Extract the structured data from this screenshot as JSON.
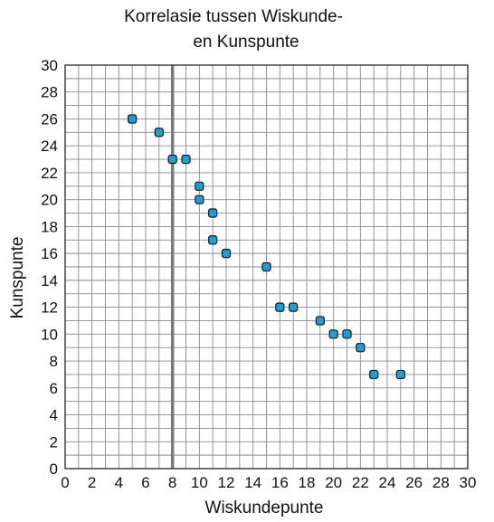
{
  "chart_data": {
    "type": "scatter",
    "title_lines": [
      "Korrelasie tussen Wiskunde-",
      "en Kunspunte"
    ],
    "xlabel": "Wiskundepunte",
    "ylabel": "Kunspunte",
    "xlim": [
      0,
      30
    ],
    "ylim": [
      0,
      30
    ],
    "x_ticks": [
      0,
      2,
      4,
      6,
      8,
      10,
      12,
      14,
      16,
      18,
      20,
      22,
      24,
      26,
      28,
      30
    ],
    "y_ticks": [
      0,
      2,
      4,
      6,
      8,
      10,
      12,
      14,
      16,
      18,
      20,
      22,
      24,
      26,
      28,
      30
    ],
    "grid": true,
    "vertical_reference_line_x": 8,
    "marker_color": "#1aa0d8",
    "marker_edge_color": "#1a1a1a",
    "points": [
      {
        "x": 5,
        "y": 26
      },
      {
        "x": 7,
        "y": 25
      },
      {
        "x": 8,
        "y": 23
      },
      {
        "x": 9,
        "y": 23
      },
      {
        "x": 10,
        "y": 21
      },
      {
        "x": 10,
        "y": 20
      },
      {
        "x": 11,
        "y": 19
      },
      {
        "x": 11,
        "y": 17
      },
      {
        "x": 12,
        "y": 16
      },
      {
        "x": 15,
        "y": 15
      },
      {
        "x": 16,
        "y": 12
      },
      {
        "x": 17,
        "y": 12
      },
      {
        "x": 19,
        "y": 11
      },
      {
        "x": 20,
        "y": 10
      },
      {
        "x": 21,
        "y": 10
      },
      {
        "x": 22,
        "y": 9
      },
      {
        "x": 23,
        "y": 7
      },
      {
        "x": 25,
        "y": 7
      }
    ]
  }
}
